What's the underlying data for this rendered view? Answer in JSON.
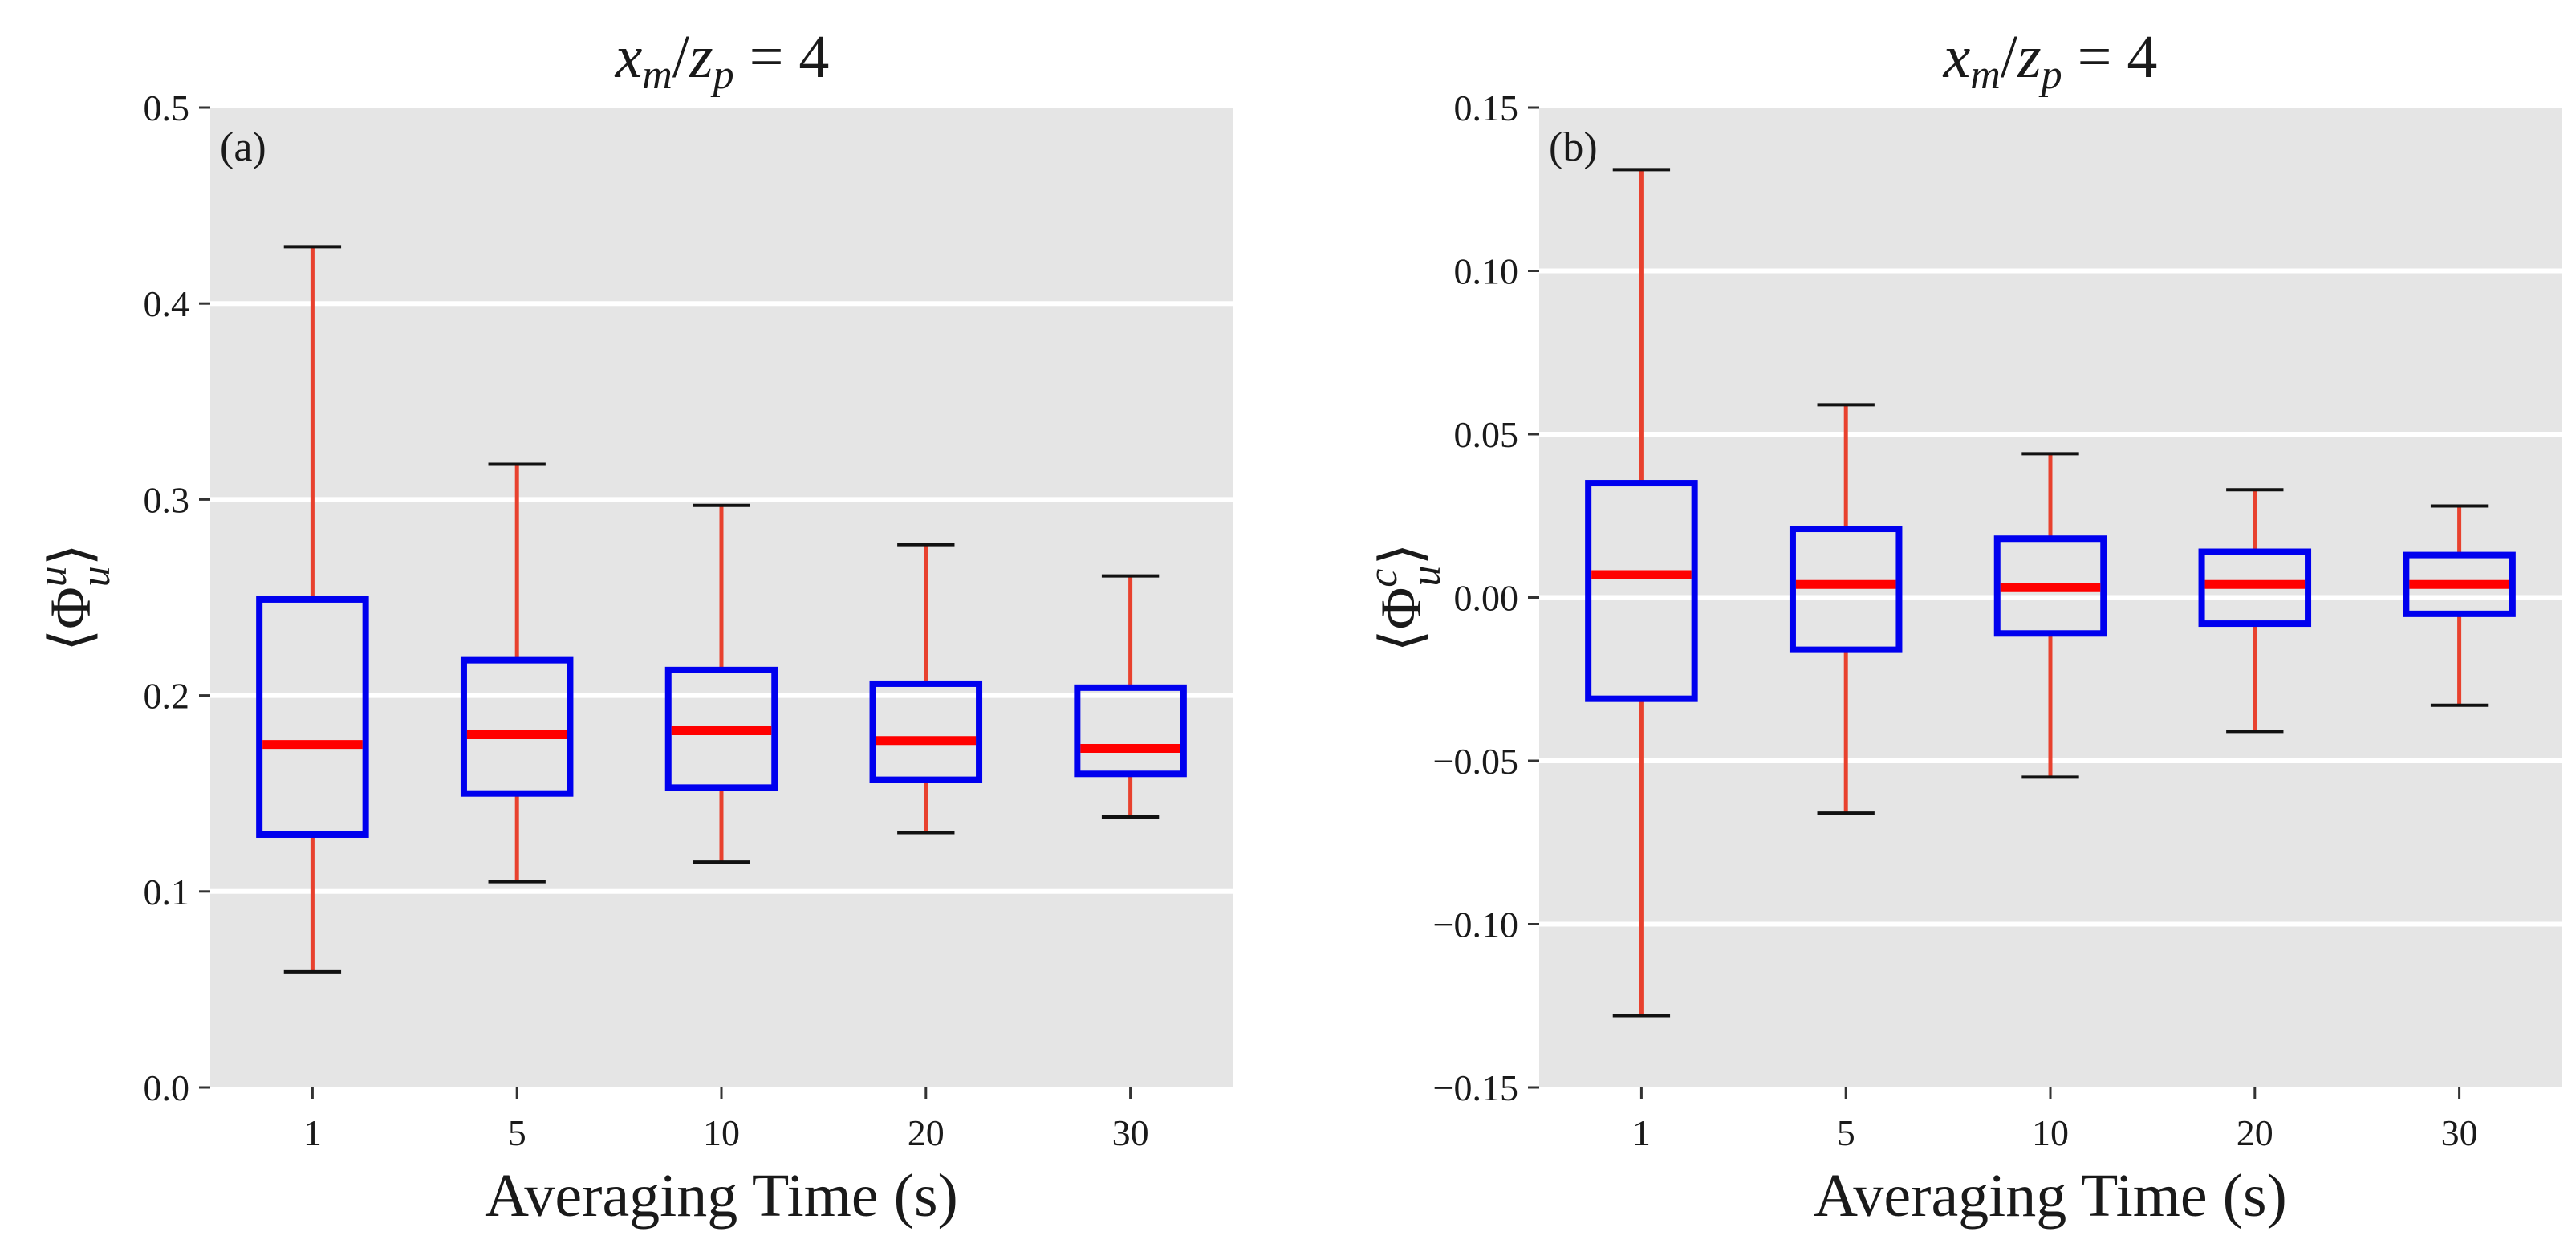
{
  "chart_data": [
    {
      "type": "boxplot",
      "panel_label": "(a)",
      "title": "x_m/z_p = 4",
      "xlabel": "Averaging Time (s)",
      "ylabel": "⟨Φ_u^u⟩",
      "categories": [
        "1",
        "5",
        "10",
        "20",
        "30"
      ],
      "ylim": [
        0.0,
        0.5
      ],
      "yticks": [
        0.0,
        0.1,
        0.2,
        0.3,
        0.4,
        0.5
      ],
      "ytick_labels": [
        "0.0",
        "0.1",
        "0.2",
        "0.3",
        "0.4",
        "0.5"
      ],
      "grid": true,
      "boxes": [
        {
          "category": "1",
          "whisker_low": 0.059,
          "q1": 0.129,
          "median": 0.175,
          "q3": 0.249,
          "whisker_high": 0.429
        },
        {
          "category": "5",
          "whisker_low": 0.105,
          "q1": 0.15,
          "median": 0.18,
          "q3": 0.218,
          "whisker_high": 0.318
        },
        {
          "category": "10",
          "whisker_low": 0.115,
          "q1": 0.153,
          "median": 0.182,
          "q3": 0.213,
          "whisker_high": 0.297
        },
        {
          "category": "20",
          "whisker_low": 0.13,
          "q1": 0.157,
          "median": 0.177,
          "q3": 0.206,
          "whisker_high": 0.277
        },
        {
          "category": "30",
          "whisker_low": 0.138,
          "q1": 0.16,
          "median": 0.173,
          "q3": 0.204,
          "whisker_high": 0.261
        }
      ]
    },
    {
      "type": "boxplot",
      "panel_label": "(b)",
      "title": "x_m/z_p = 4",
      "xlabel": "Averaging Time (s)",
      "ylabel": "⟨Φ_u^c⟩",
      "categories": [
        "1",
        "5",
        "10",
        "20",
        "30"
      ],
      "ylim": [
        -0.15,
        0.15
      ],
      "yticks": [
        -0.15,
        -0.1,
        -0.05,
        0.0,
        0.05,
        0.1,
        0.15
      ],
      "ytick_labels": [
        "−0.15",
        "−0.10",
        "−0.05",
        "0.00",
        "0.05",
        "0.10",
        "0.15"
      ],
      "grid": true,
      "boxes": [
        {
          "category": "1",
          "whisker_low": -0.128,
          "q1": -0.031,
          "median": 0.007,
          "q3": 0.035,
          "whisker_high": 0.131
        },
        {
          "category": "5",
          "whisker_low": -0.066,
          "q1": -0.016,
          "median": 0.004,
          "q3": 0.021,
          "whisker_high": 0.059
        },
        {
          "category": "10",
          "whisker_low": -0.055,
          "q1": -0.011,
          "median": 0.003,
          "q3": 0.018,
          "whisker_high": 0.044
        },
        {
          "category": "20",
          "whisker_low": -0.041,
          "q1": -0.008,
          "median": 0.004,
          "q3": 0.014,
          "whisker_high": 0.033
        },
        {
          "category": "30",
          "whisker_low": -0.033,
          "q1": -0.005,
          "median": 0.004,
          "q3": 0.013,
          "whisker_high": 0.028
        }
      ]
    }
  ],
  "colors": {
    "panel_background": "#e5e5e5",
    "gridline": "#ffffff",
    "box_outline": "#0000ee",
    "median": "#ff0000",
    "whisker": "#e8412e",
    "whisker_cap": "#111111",
    "axis_tick": "#333333"
  }
}
